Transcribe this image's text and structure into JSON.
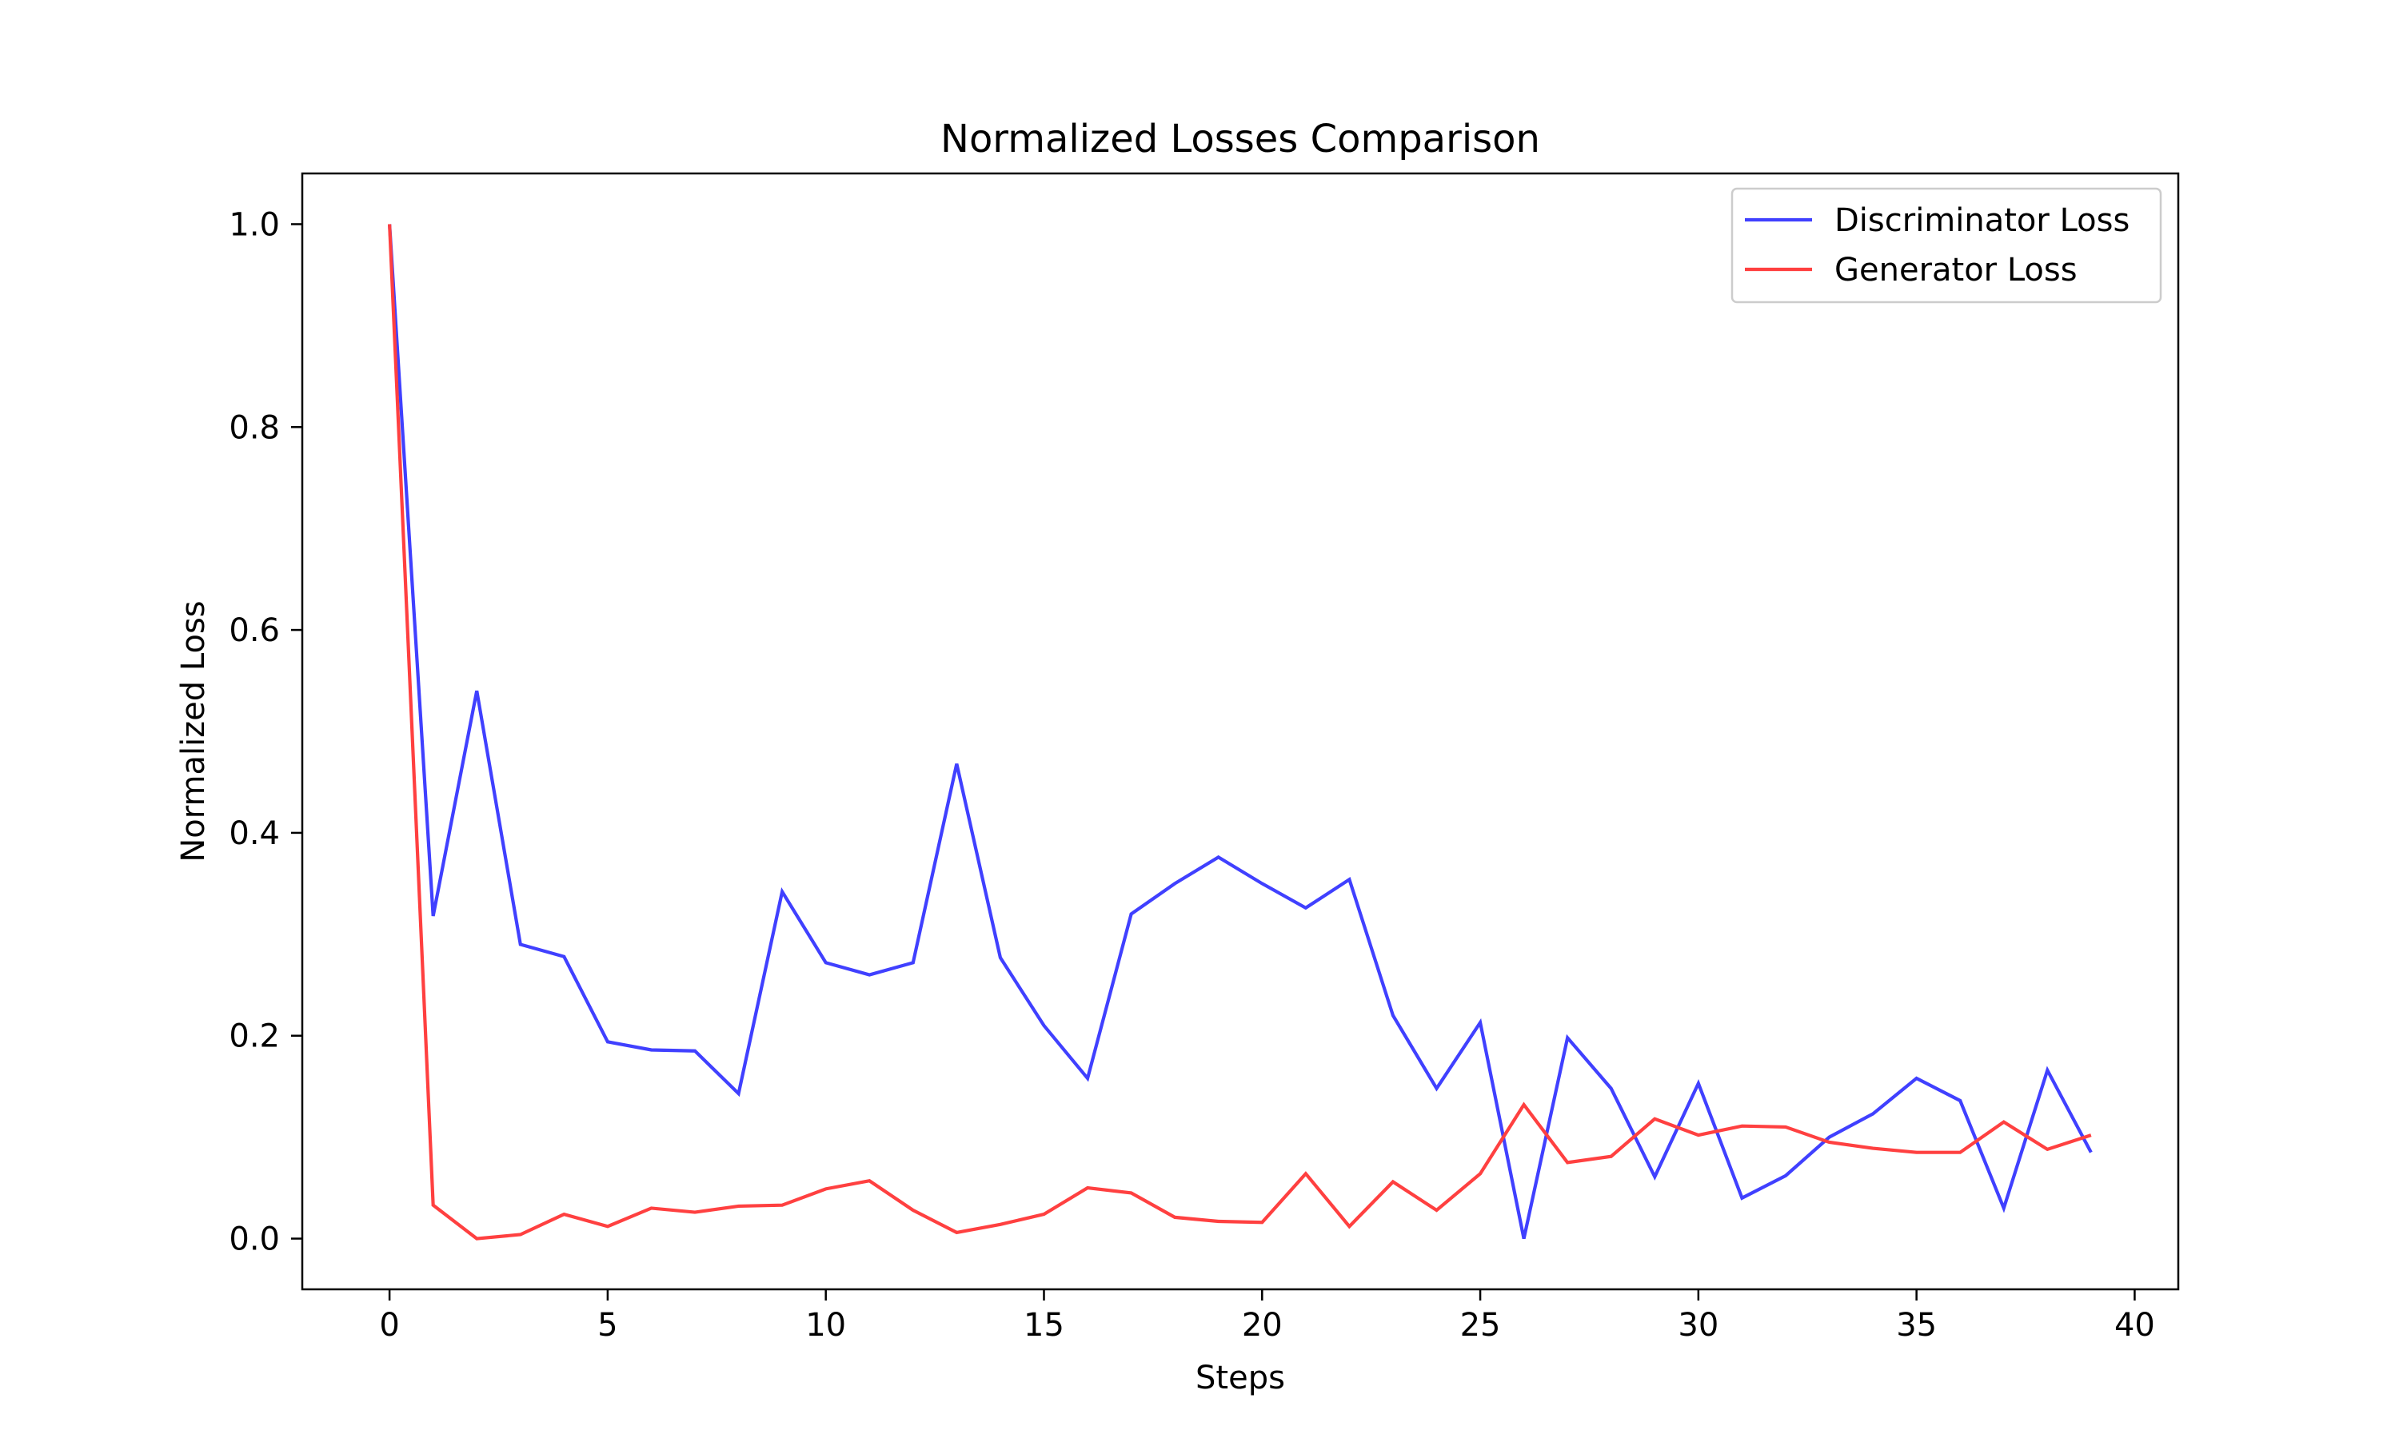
{
  "chart_data": {
    "type": "line",
    "title": "Normalized Losses Comparison",
    "xlabel": "Steps",
    "ylabel": "Normalized Loss",
    "xlim": [
      -2,
      41
    ],
    "ylim": [
      -0.05,
      1.05
    ],
    "xticks": [
      0,
      5,
      10,
      15,
      20,
      25,
      30,
      35,
      40
    ],
    "xtick_labels": [
      "0",
      "5",
      "10",
      "15",
      "20",
      "25",
      "30",
      "35",
      "40"
    ],
    "yticks": [
      0.0,
      0.2,
      0.4,
      0.6,
      0.8,
      1.0
    ],
    "ytick_labels": [
      "0.0",
      "0.2",
      "0.4",
      "0.6",
      "0.8",
      "1.0"
    ],
    "grid": false,
    "legend_position": "top-right",
    "x": [
      0,
      1,
      2,
      3,
      4,
      5,
      6,
      7,
      8,
      9,
      10,
      11,
      12,
      13,
      14,
      15,
      16,
      17,
      18,
      19,
      20,
      21,
      22,
      23,
      24,
      25,
      26,
      27,
      28,
      29,
      30,
      31,
      32,
      33,
      34,
      35,
      36,
      37,
      38,
      39
    ],
    "series": [
      {
        "name": "Discriminator Loss",
        "color": "#4040ff",
        "values": [
          1.0,
          0.318,
          0.54,
          0.29,
          0.278,
          0.194,
          0.186,
          0.185,
          0.143,
          0.342,
          0.272,
          0.26,
          0.272,
          0.468,
          0.277,
          0.21,
          0.158,
          0.32,
          0.35,
          0.376,
          0.35,
          0.326,
          0.354,
          0.22,
          0.148,
          0.213,
          0.0,
          0.198,
          0.148,
          0.061,
          0.153,
          0.04,
          0.062,
          0.1,
          0.123,
          0.158,
          0.136,
          0.03,
          0.166,
          0.085
        ]
      },
      {
        "name": "Generator Loss",
        "color": "#ff4040",
        "values": [
          1.0,
          0.033,
          0.0,
          0.004,
          0.024,
          0.012,
          0.03,
          0.026,
          0.032,
          0.033,
          0.049,
          0.057,
          0.028,
          0.006,
          0.014,
          0.024,
          0.05,
          0.045,
          0.021,
          0.017,
          0.016,
          0.064,
          0.012,
          0.056,
          0.028,
          0.064,
          0.132,
          0.075,
          0.081,
          0.118,
          0.102,
          0.111,
          0.11,
          0.095,
          0.089,
          0.085,
          0.085,
          0.115,
          0.088,
          0.102
        ]
      }
    ]
  }
}
